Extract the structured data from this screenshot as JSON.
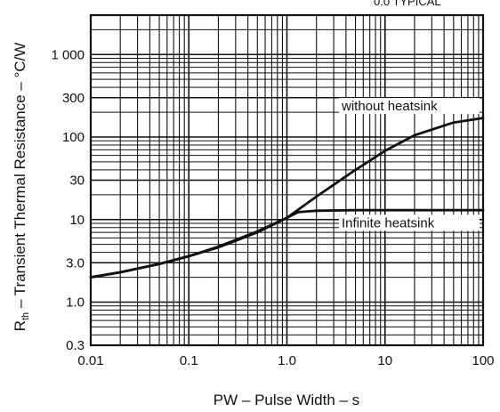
{
  "chart_data": {
    "type": "line",
    "xscale": "log",
    "yscale": "log",
    "xlim": [
      0.01,
      100
    ],
    "ylim": [
      0.3,
      3000
    ],
    "grid": true,
    "xlabel": "PW – Pulse Width – s",
    "ylabel_main": "R",
    "ylabel_sub": "th",
    "ylabel_rest": " – Transient Thermal Resistance – °C/W",
    "x_ticks": [
      {
        "value": 0.01,
        "label": "0.01"
      },
      {
        "value": 0.1,
        "label": "0.1"
      },
      {
        "value": 1,
        "label": "1.0"
      },
      {
        "value": 10,
        "label": "10"
      },
      {
        "value": 100,
        "label": "100"
      }
    ],
    "y_ticks": [
      {
        "value": 0.3,
        "label": "0.3"
      },
      {
        "value": 1,
        "label": "1.0"
      },
      {
        "value": 3,
        "label": "3.0"
      },
      {
        "value": 10,
        "label": "10"
      },
      {
        "value": 30,
        "label": "30"
      },
      {
        "value": 100,
        "label": "100"
      },
      {
        "value": 300,
        "label": "300"
      },
      {
        "value": 1000,
        "label": "1 000"
      }
    ],
    "top_fragment": "0.0 TYPICAL",
    "series": [
      {
        "name": "without heatsink",
        "x": [
          0.01,
          0.02,
          0.05,
          0.1,
          0.2,
          0.5,
          1,
          2,
          5,
          10,
          20,
          50,
          100
        ],
        "y": [
          2.0,
          2.3,
          2.9,
          3.6,
          4.6,
          7.0,
          10.5,
          19,
          40,
          68,
          105,
          150,
          170
        ]
      },
      {
        "name": "Infinite heatsink",
        "x": [
          0.01,
          0.02,
          0.05,
          0.1,
          0.2,
          0.5,
          1,
          1.3,
          2,
          5,
          10,
          100
        ],
        "y": [
          2.0,
          2.3,
          2.9,
          3.6,
          4.7,
          7.2,
          10.5,
          12.3,
          12.8,
          13,
          13,
          13
        ]
      }
    ]
  }
}
